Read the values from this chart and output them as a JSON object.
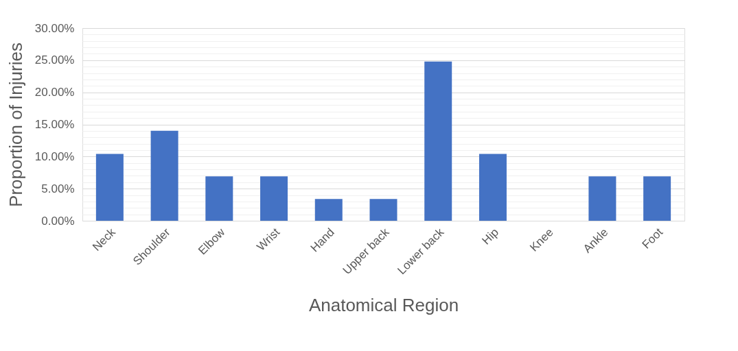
{
  "chart_data": {
    "type": "bar",
    "xlabel": "Anatomical Region",
    "ylabel": "Proportion of Injuries",
    "categories": [
      "Neck",
      "Shoulder",
      "Elbow",
      "Wrist",
      "Hand",
      "Upper back",
      "Lower back",
      "Hip",
      "Knee",
      "Ankle",
      "Foot"
    ],
    "values": [
      10.4,
      14.0,
      6.9,
      6.9,
      3.4,
      3.4,
      24.8,
      10.4,
      0,
      6.9,
      6.9
    ],
    "color": "#4472c4",
    "ylim": [
      0,
      30
    ],
    "yticks": [
      {
        "value": 0,
        "label": "0.00%"
      },
      {
        "value": 1,
        "label": null
      },
      {
        "value": 2,
        "label": null
      },
      {
        "value": 3,
        "label": null
      },
      {
        "value": 4,
        "label": null
      },
      {
        "value": 5,
        "label": "5.00%"
      },
      {
        "value": 6,
        "label": null
      },
      {
        "value": 7,
        "label": null
      },
      {
        "value": 8,
        "label": null
      },
      {
        "value": 9,
        "label": null
      },
      {
        "value": 10,
        "label": "10.00%"
      },
      {
        "value": 11,
        "label": null
      },
      {
        "value": 12,
        "label": null
      },
      {
        "value": 13,
        "label": null
      },
      {
        "value": 14,
        "label": null
      },
      {
        "value": 15,
        "label": "15.00%"
      },
      {
        "value": 16,
        "label": null
      },
      {
        "value": 17,
        "label": null
      },
      {
        "value": 18,
        "label": null
      },
      {
        "value": 19,
        "label": null
      },
      {
        "value": 20,
        "label": "20.00%"
      },
      {
        "value": 21,
        "label": null
      },
      {
        "value": 22,
        "label": null
      },
      {
        "value": 23,
        "label": null
      },
      {
        "value": 24,
        "label": null
      },
      {
        "value": 25,
        "label": "25.00%"
      },
      {
        "value": 26,
        "label": null
      },
      {
        "value": 27,
        "label": null
      },
      {
        "value": 28,
        "label": null
      },
      {
        "value": 29,
        "label": null
      },
      {
        "value": 30,
        "label": "30.00%"
      }
    ],
    "grid": "y"
  }
}
